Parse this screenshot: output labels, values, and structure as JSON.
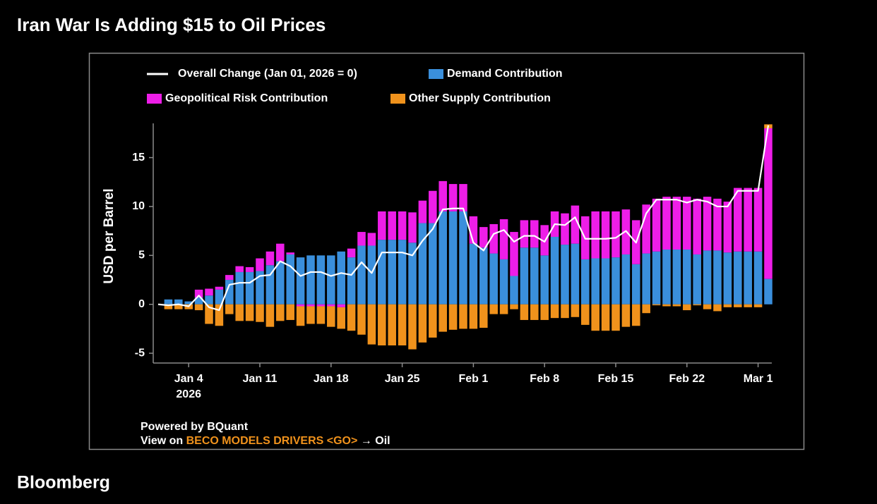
{
  "chart_data": {
    "type": "bar",
    "title": "Iran War Is Adding $15 to Oil Prices",
    "ylabel": "USD per Barrel",
    "brand": "Bloomberg",
    "footer": {
      "powered": "Powered by BQuant",
      "view_prefix": "View on",
      "link": "BECO MODELS DRIVERS <GO>",
      "suffix": "→ Oil"
    },
    "x": [
      "2026-01-01",
      "2026-01-02",
      "2026-01-03",
      "2026-01-04",
      "2026-01-05",
      "2026-01-06",
      "2026-01-07",
      "2026-01-08",
      "2026-01-09",
      "2026-01-10",
      "2026-01-11",
      "2026-01-12",
      "2026-01-13",
      "2026-01-14",
      "2026-01-15",
      "2026-01-16",
      "2026-01-17",
      "2026-01-18",
      "2026-01-19",
      "2026-01-20",
      "2026-01-21",
      "2026-01-22",
      "2026-01-23",
      "2026-01-24",
      "2026-01-25",
      "2026-01-26",
      "2026-01-27",
      "2026-01-28",
      "2026-01-29",
      "2026-01-30",
      "2026-01-31",
      "2026-02-01",
      "2026-02-02",
      "2026-02-03",
      "2026-02-04",
      "2026-02-05",
      "2026-02-06",
      "2026-02-07",
      "2026-02-08",
      "2026-02-09",
      "2026-02-10",
      "2026-02-11",
      "2026-02-12",
      "2026-02-13",
      "2026-02-14",
      "2026-02-15",
      "2026-02-16",
      "2026-02-17",
      "2026-02-18",
      "2026-02-19",
      "2026-02-20",
      "2026-02-21",
      "2026-02-22",
      "2026-02-23",
      "2026-02-24",
      "2026-02-25",
      "2026-02-26",
      "2026-02-27",
      "2026-02-28",
      "2026-03-01",
      "2026-03-02"
    ],
    "xticks": [
      {
        "value": "2026-01-04",
        "label": "Jan 4"
      },
      {
        "value": "2026-01-11",
        "label": "Jan 11"
      },
      {
        "value": "2026-01-18",
        "label": "Jan 18"
      },
      {
        "value": "2026-01-25",
        "label": "Jan 25"
      },
      {
        "value": "2026-02-01",
        "label": "Feb 1"
      },
      {
        "value": "2026-02-08",
        "label": "Feb 8"
      },
      {
        "value": "2026-02-15",
        "label": "Feb 15"
      },
      {
        "value": "2026-02-22",
        "label": "Feb 22"
      },
      {
        "value": "2026-03-01",
        "label": "Mar 1"
      }
    ],
    "xtick_year": "2026",
    "ylim": [
      -6,
      18.5
    ],
    "yticks": [
      -5,
      0,
      5,
      10,
      15
    ],
    "series": [
      {
        "name": "Overall Change (Jan 01, 2026 = 0)",
        "type": "line",
        "color": "#ffffff",
        "values": [
          0,
          -0.1,
          0,
          -0.2,
          0.9,
          -0.3,
          -0.6,
          2.0,
          2.2,
          2.2,
          2.9,
          3.0,
          4.4,
          3.9,
          2.9,
          3.3,
          3.3,
          2.9,
          3.2,
          3.0,
          4.3,
          3.2,
          5.3,
          5.3,
          5.3,
          5.0,
          6.5,
          7.7,
          9.7,
          9.8,
          9.8,
          6.3,
          5.5,
          7.2,
          7.6,
          6.4,
          7.0,
          7.0,
          6.4,
          8.2,
          8.1,
          8.9,
          6.7,
          6.7,
          6.7,
          6.8,
          7.5,
          6.3,
          9.3,
          10.7,
          10.7,
          10.7,
          10.4,
          10.7,
          10.5,
          10.0,
          10.0,
          11.6,
          11.6,
          11.6,
          18.3
        ]
      },
      {
        "name": "Demand Contribution",
        "type": "bar",
        "color": "#3a8fdc",
        "values": [
          null,
          0.5,
          0.5,
          0.3,
          0.7,
          0.9,
          1.5,
          2.5,
          3.3,
          3.3,
          3.4,
          4.0,
          4.4,
          5.1,
          4.8,
          5.0,
          5.0,
          5.0,
          5.4,
          4.8,
          6.0,
          6.0,
          6.6,
          6.6,
          6.6,
          6.3,
          8.3,
          8.3,
          9.5,
          9.5,
          9.5,
          6.2,
          5.8,
          5.2,
          4.6,
          2.9,
          5.8,
          5.8,
          5.0,
          6.9,
          6.1,
          6.2,
          4.6,
          4.7,
          4.7,
          4.8,
          5.1,
          4.1,
          5.2,
          5.4,
          5.6,
          5.6,
          5.6,
          5.1,
          5.5,
          5.5,
          5.3,
          5.4,
          5.4,
          5.4,
          2.6
        ]
      },
      {
        "name": "Geopolitical Risk Contribution",
        "type": "bar",
        "color": "#ee1ee8",
        "values": [
          null,
          0,
          0,
          0,
          0.8,
          0.7,
          0.3,
          0.5,
          0.6,
          0.5,
          1.3,
          1.4,
          1.8,
          0.2,
          -0.2,
          -0.2,
          -0.2,
          -0.2,
          -0.3,
          0.9,
          1.4,
          1.3,
          2.9,
          2.9,
          2.9,
          3.1,
          2.3,
          3.3,
          3.1,
          2.8,
          2.8,
          2.8,
          2.1,
          3.0,
          4.1,
          4.5,
          2.8,
          2.8,
          3.1,
          2.6,
          3.2,
          3.9,
          4.4,
          4.8,
          4.8,
          4.7,
          4.6,
          4.5,
          5.0,
          5.4,
          5.4,
          5.4,
          5.4,
          5.7,
          5.5,
          5.3,
          5.2,
          6.5,
          6.5,
          6.5,
          15.4
        ]
      },
      {
        "name": "Other Supply Contribution",
        "type": "bar",
        "color": "#f0921c",
        "values": [
          null,
          -0.5,
          -0.5,
          -0.5,
          -0.6,
          -2.0,
          -2.2,
          -1.0,
          -1.7,
          -1.7,
          -1.8,
          -2.3,
          -1.7,
          -1.6,
          -2.0,
          -1.8,
          -1.8,
          -2.1,
          -2.2,
          -2.7,
          -3.1,
          -4.1,
          -4.2,
          -4.2,
          -4.2,
          -4.6,
          -3.9,
          -3.4,
          -2.8,
          -2.6,
          -2.5,
          -2.5,
          -2.4,
          -1.0,
          -1.0,
          -0.5,
          -1.6,
          -1.6,
          -1.6,
          -1.4,
          -1.4,
          -1.3,
          -2.1,
          -2.7,
          -2.7,
          -2.7,
          -2.3,
          -2.2,
          -0.9,
          -0.1,
          -0.2,
          -0.2,
          -0.6,
          -0.1,
          -0.5,
          -0.7,
          -0.3,
          -0.3,
          -0.3,
          -0.3,
          0.4
        ]
      }
    ]
  }
}
